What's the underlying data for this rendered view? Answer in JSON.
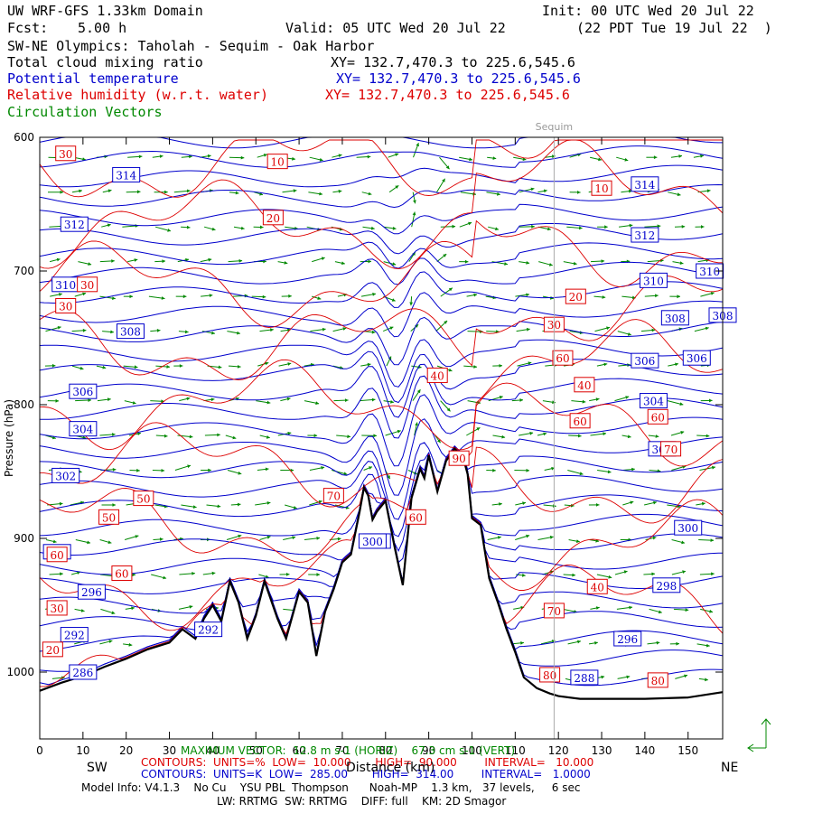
{
  "header": {
    "domain_title": "UW WRF-GFS 1.33km Domain",
    "init": "Init: 00 UTC Wed 20 Jul 22",
    "fcst_label": "Fcst:",
    "fcst_value": "5.00 h",
    "valid": "Valid: 05 UTC Wed 20 Jul 22",
    "valid_local": "(22 PDT Tue 19 Jul 22  )",
    "cross_section": "SW-NE Olympics: Taholah - Sequim - Oak Harbor",
    "var1": "Total cloud mixing ratio",
    "var1_xy": "XY= 132.7,470.3 to 225.6,545.6",
    "var2": "Potential temperature",
    "var2_xy": "XY= 132.7,470.3 to 225.6,545.6",
    "var3": "Relative humidity (w.r.t. water)",
    "var3_xy": "XY= 132.7,470.3 to 225.6,545.6",
    "var4": "Circulation Vectors"
  },
  "footer": {
    "max_vector": "MAXIMUM VECTOR:  12.8 m s-1 (HORIZ)    67.3 cm s-1 (VERT)",
    "contours_rh": "CONTOURS:  UNITS=%  LOW=  10.000       HIGH=  90.000        INTERVAL=   10.000",
    "contours_theta": "CONTOURS:  UNITS=K  LOW=  285.00       HIGH=  314.00        INTERVAL=   1.0000",
    "model_info": "Model Info: V4.1.3    No Cu    YSU PBL  Thompson      Noah-MP    1.3 km,   37 levels,     6 sec",
    "physics": "LW: RRTMG  SW: RRTMG    DIFF: full    KM: 2D Smagor",
    "left_end": "SW",
    "right_end": "NE"
  },
  "chart_data": {
    "type": "line",
    "xlabel": "Distance (km)",
    "ylabel": "Pressure (hPa)",
    "xlim": [
      0,
      158
    ],
    "ylim": [
      1050,
      600
    ],
    "x_ticks": [
      0,
      10,
      20,
      30,
      40,
      50,
      60,
      70,
      80,
      90,
      100,
      110,
      120,
      130,
      140,
      150
    ],
    "y_ticks": [
      600,
      700,
      800,
      900,
      1000
    ],
    "y_tick_labels": [
      "600",
      "700",
      "800",
      "900",
      "1000"
    ],
    "reference_line": {
      "label": "Sequim",
      "x": 119
    },
    "terrain": {
      "x": [
        0,
        5,
        10,
        15,
        20,
        25,
        30,
        33,
        36,
        38,
        40,
        42,
        44,
        46,
        48,
        50,
        52,
        55,
        57,
        60,
        62,
        64,
        66,
        68,
        70,
        72,
        74,
        75,
        76,
        77,
        78,
        80,
        82,
        84,
        86,
        88,
        89,
        90,
        92,
        94,
        96,
        98,
        99,
        100,
        102,
        104,
        106,
        108,
        110,
        112,
        115,
        118,
        120,
        125,
        130,
        140,
        150,
        158
      ],
      "y": [
        1014,
        1008,
        1003,
        996,
        990,
        983,
        978,
        968,
        975,
        960,
        950,
        962,
        932,
        948,
        975,
        958,
        932,
        960,
        975,
        940,
        948,
        988,
        955,
        938,
        918,
        912,
        880,
        862,
        868,
        886,
        880,
        872,
        905,
        935,
        870,
        848,
        855,
        838,
        865,
        842,
        833,
        840,
        852,
        885,
        890,
        930,
        948,
        968,
        985,
        1004,
        1012,
        1016,
        1018,
        1020,
        1020,
        1020,
        1019,
        1015
      ]
    },
    "theta_contours": {
      "units": "K",
      "low": 285,
      "high": 314,
      "interval": 1,
      "labels": [
        314,
        312,
        310,
        308,
        306,
        304,
        302,
        300,
        298,
        296,
        292,
        286,
        314,
        312,
        310,
        310,
        308,
        308,
        306,
        306,
        304,
        302,
        300,
        298,
        296,
        288,
        300,
        292
      ]
    },
    "rh_contours": {
      "units": "%",
      "low": 10,
      "high": 90,
      "interval": 10,
      "labels": [
        30,
        10,
        20,
        30,
        30,
        40,
        50,
        50,
        60,
        60,
        70,
        60,
        40,
        60,
        10,
        20,
        30,
        40,
        60,
        70,
        60,
        70,
        80,
        80,
        20,
        30,
        90
      ]
    },
    "max_vector": {
      "horiz_ms": 12.8,
      "vert_cms": 67.3
    }
  },
  "colors": {
    "theta": "#0000cc",
    "rh": "#dd0000",
    "vectors": "#008800",
    "terrain": "#000000",
    "sequim_line": "#aaaaaa"
  }
}
